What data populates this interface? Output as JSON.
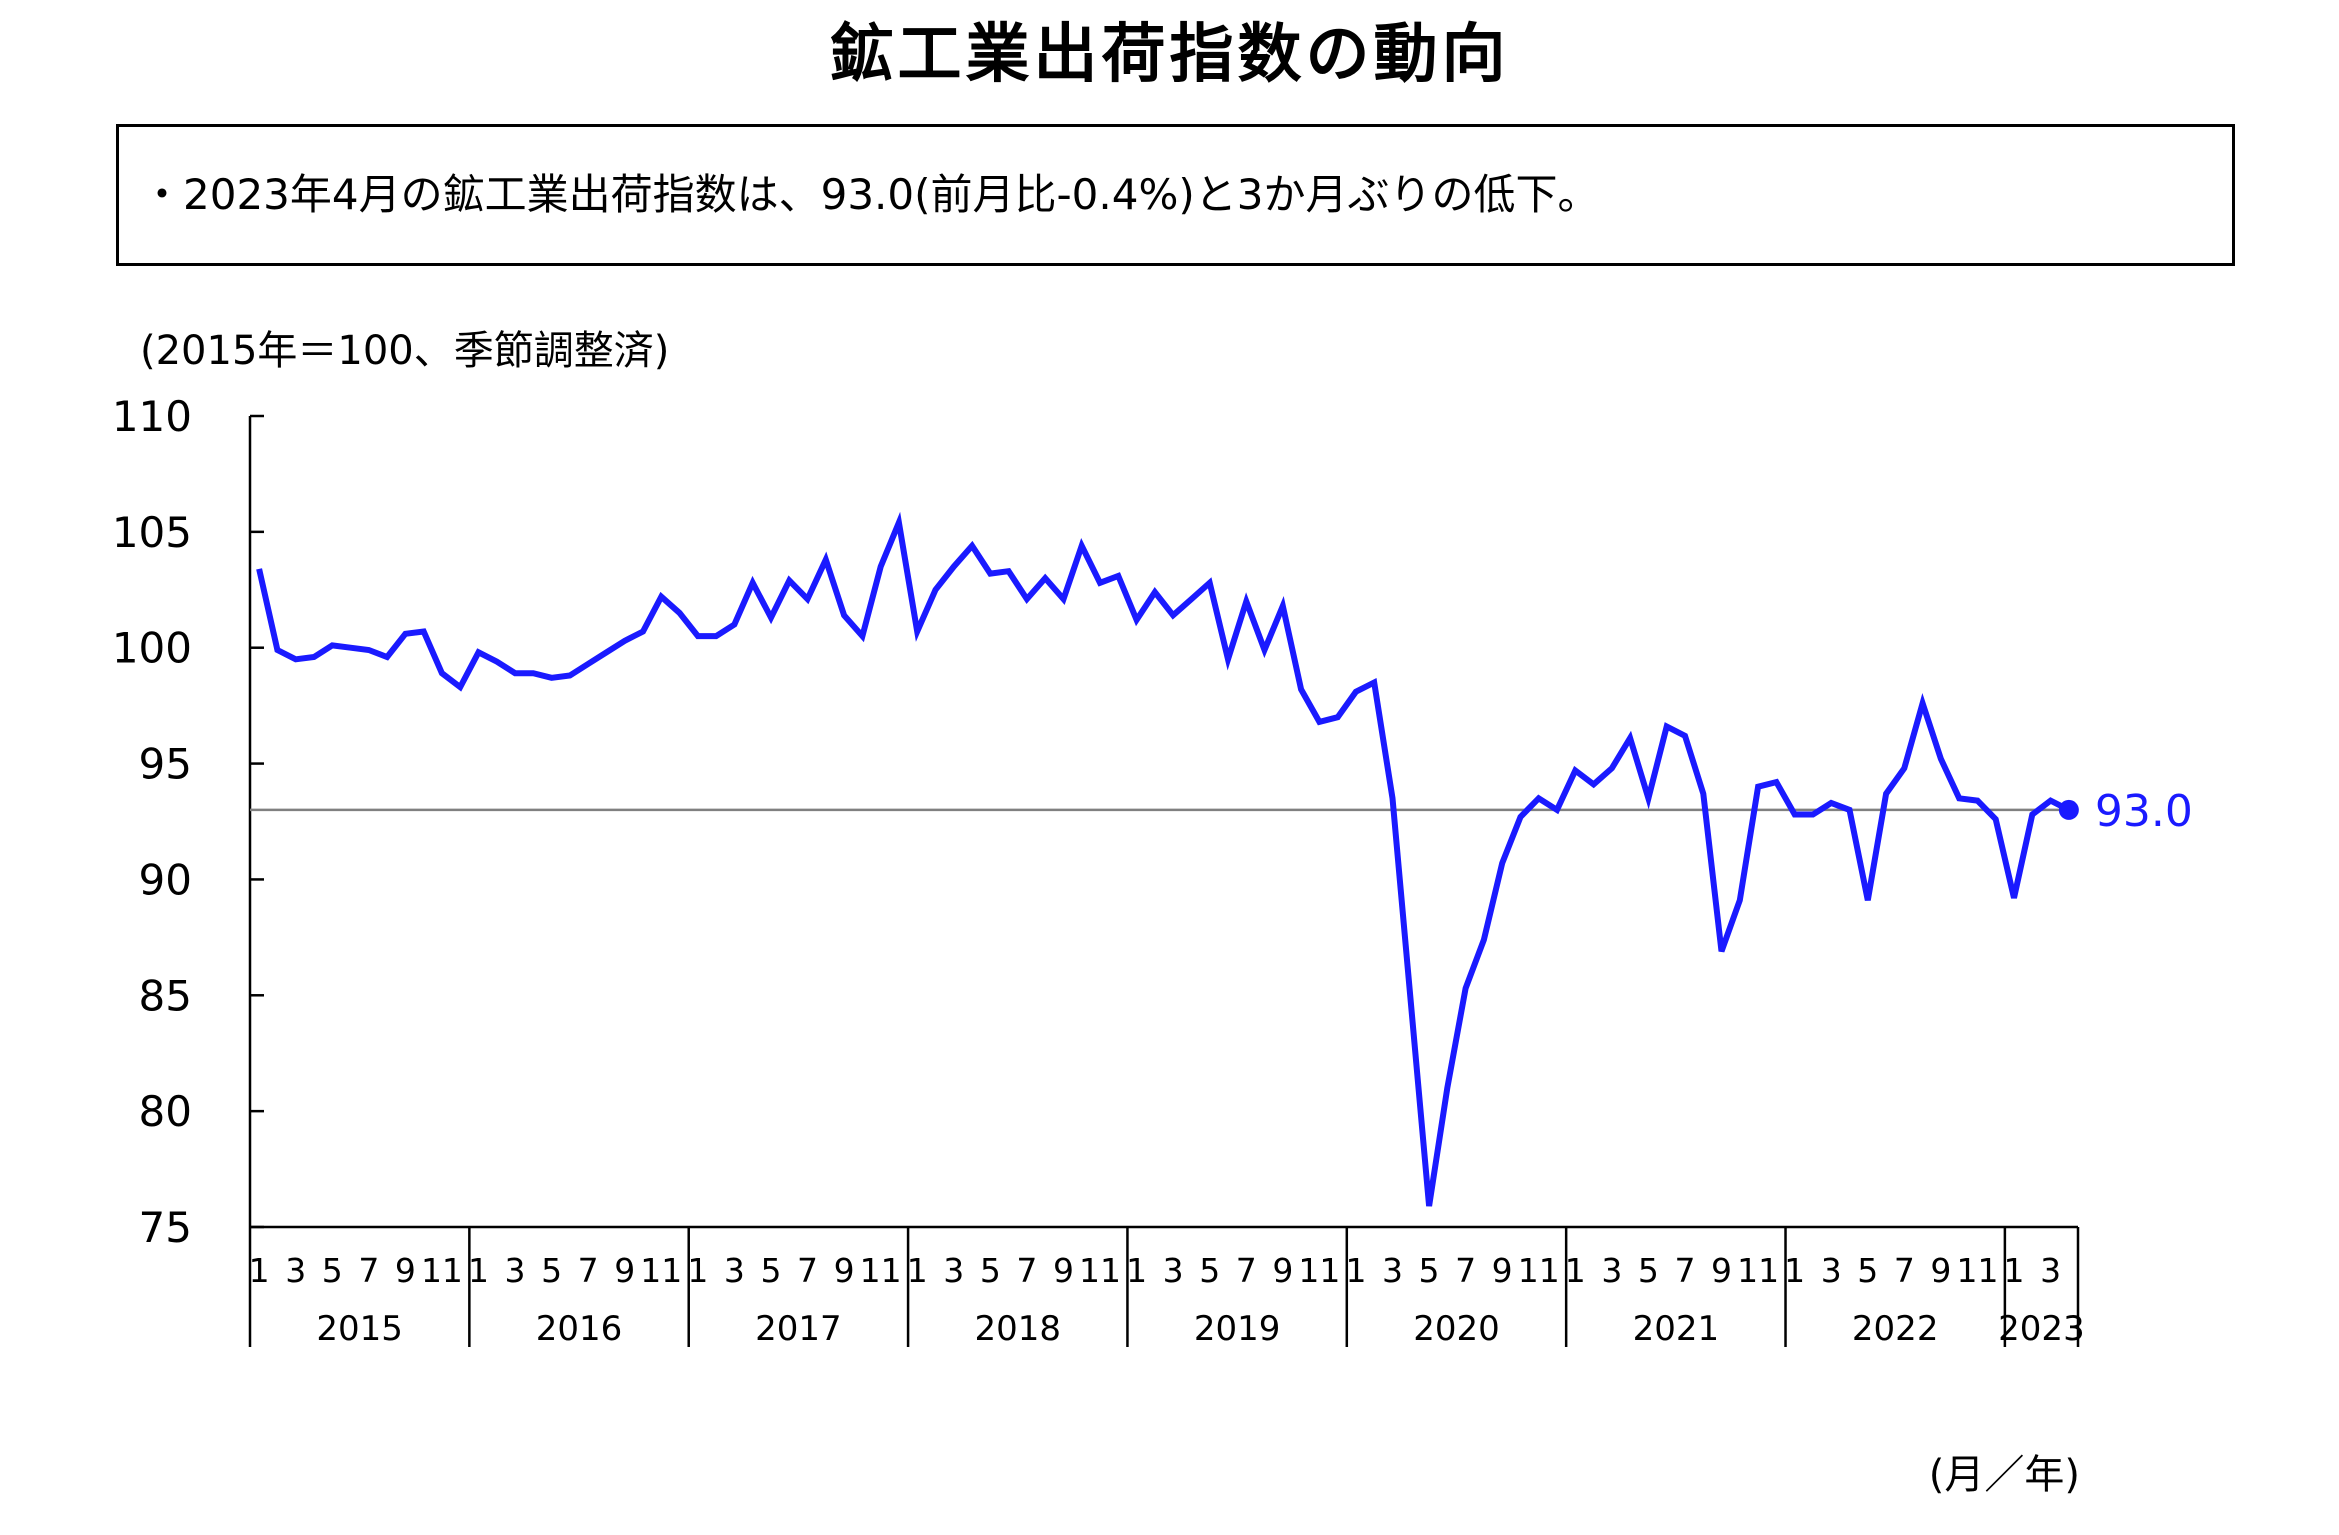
{
  "header": {
    "title": "鉱工業出荷指数の動向",
    "summary": "・2023年4月の鉱工業出荷指数は、93.0(前月比-0.4%)と3か月ぶりの低下。"
  },
  "chart_data": {
    "type": "line",
    "title": "鉱工業出荷指数の動向",
    "ylabel": "(2015年＝100、季節調整済)",
    "xlabel": "(月／年)",
    "ylim": [
      75,
      110
    ],
    "yticks": [
      75,
      80,
      85,
      90,
      95,
      100,
      105,
      110
    ],
    "grid": false,
    "month_tick_labels": [
      "1",
      "3",
      "5",
      "7",
      "9",
      "11"
    ],
    "years": [
      "2015",
      "2016",
      "2017",
      "2018",
      "2019",
      "2020",
      "2021",
      "2022",
      "2023"
    ],
    "reference_line": 93.0,
    "latest_label": "93.0",
    "line_color": "#1a1aff",
    "ref_line_color": "#808080",
    "series": [
      {
        "start": "2015-01",
        "values": [
          103.4,
          99.9,
          99.5,
          99.6,
          100.1,
          100.0,
          99.9,
          99.6,
          100.6,
          100.7,
          98.9,
          98.3,
          99.8,
          99.4,
          98.9,
          98.9,
          98.7,
          98.8,
          99.3,
          99.8,
          100.3,
          100.7,
          102.2,
          101.5,
          100.5,
          100.5,
          101.0,
          102.8,
          101.3,
          102.9,
          102.1,
          103.8,
          101.4,
          100.5,
          103.5,
          105.4,
          100.7,
          102.5,
          103.5,
          104.4,
          103.2,
          103.3,
          102.1,
          103.0,
          102.1,
          104.4,
          102.8,
          103.1,
          101.2,
          102.4,
          101.4,
          102.1,
          102.8,
          99.5,
          102.0,
          99.9,
          101.8,
          98.2,
          96.8,
          97.0,
          98.1,
          98.5,
          93.5,
          84.7,
          75.9,
          81.0,
          85.3,
          87.4,
          90.7,
          92.7,
          93.5,
          93.0,
          94.7,
          94.1,
          94.8,
          96.1,
          93.5,
          96.6,
          96.2,
          93.7,
          86.9,
          89.1,
          94.0,
          94.2,
          92.8,
          92.8,
          93.3,
          93.0,
          89.1,
          93.7,
          94.8,
          97.6,
          95.2,
          93.5,
          93.4,
          92.6,
          89.2,
          92.8,
          93.4,
          93.0
        ]
      }
    ]
  }
}
